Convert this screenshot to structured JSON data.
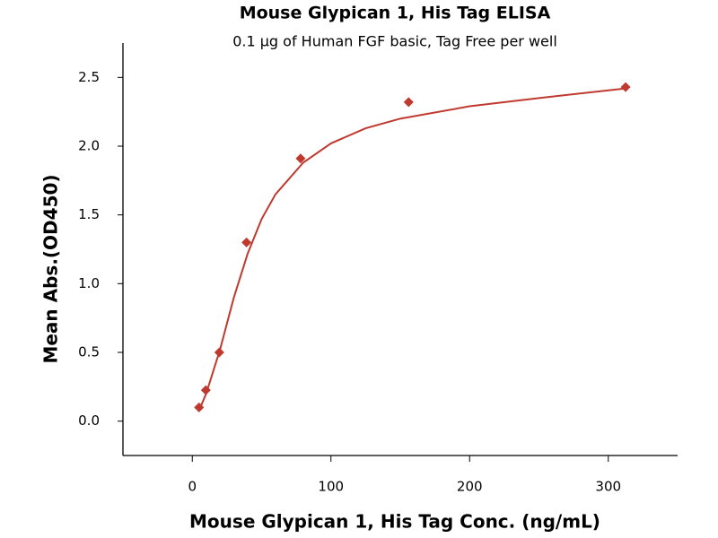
{
  "chart_data": {
    "type": "scatter",
    "title": "Mouse Glypican 1, His Tag ELISA",
    "subtitle": "0.1 µg of Human FGF basic, Tag Free per well",
    "x_label": "Mouse Glypican 1, His Tag Conc. (ng/mL)",
    "y_label": "Mean Abs.(OD450)",
    "xlim": [
      -50,
      350
    ],
    "xticks": [
      0,
      100,
      200,
      300
    ],
    "ylim": [
      -0.25,
      2.75
    ],
    "yticks": [
      {
        "value": 0,
        "label": "0.0"
      },
      0.5,
      {
        "value": 1,
        "label": "1.0"
      },
      1.5,
      {
        "value": 2,
        "label": "2.0"
      },
      2.5
    ],
    "grid": false,
    "series": [
      {
        "kind": "points",
        "color": "#c0392f",
        "x": [
          4.88,
          9.77,
          19.5,
          39.1,
          78.1,
          156,
          312.5
        ],
        "y": [
          0.1,
          0.225,
          0.5,
          1.3,
          1.91,
          2.32,
          2.43
        ]
      },
      {
        "kind": "curve",
        "color": "#c0392f",
        "x": [
          5,
          10,
          20,
          30,
          40,
          50,
          60,
          80,
          100,
          125,
          150,
          200,
          250,
          312.5
        ],
        "y": [
          0.08,
          0.2,
          0.52,
          0.9,
          1.22,
          1.47,
          1.65,
          1.88,
          2.02,
          2.13,
          2.2,
          2.29,
          2.35,
          2.42
        ]
      }
    ]
  }
}
